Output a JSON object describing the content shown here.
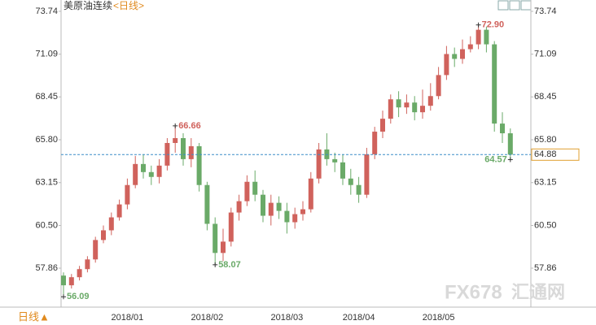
{
  "chart_data": {
    "type": "candlestick",
    "title": "美原油连续",
    "period": "<日线>",
    "period_button": "日线▲",
    "watermark": [
      "FX678",
      "汇通网"
    ],
    "categories": [
      null,
      null,
      null,
      null,
      null,
      null,
      null,
      null,
      "2018/01",
      null,
      null,
      null,
      null,
      null,
      null,
      null,
      null,
      null,
      "2018/02",
      null,
      null,
      null,
      null,
      null,
      null,
      null,
      null,
      null,
      "2018/03",
      null,
      null,
      null,
      null,
      null,
      null,
      null,
      null,
      "2018/04",
      null,
      null,
      null,
      null,
      null,
      null,
      null,
      null,
      null,
      "2018/05",
      null,
      null,
      null,
      null,
      null,
      null,
      null,
      null,
      null
    ],
    "open": [
      57.4,
      56.8,
      57.3,
      57.8,
      58.4,
      59.6,
      60.2,
      61.0,
      61.8,
      63.0,
      64.3,
      63.8,
      63.5,
      64.2,
      65.6,
      65.9,
      64.6,
      65.4,
      63.0,
      60.6,
      58.8,
      59.5,
      61.3,
      62.0,
      63.2,
      62.4,
      61.1,
      61.9,
      61.4,
      60.7,
      61.2,
      61.5,
      63.4,
      65.2,
      64.6,
      64.4,
      63.4,
      63.0,
      62.4,
      64.9,
      66.3,
      67.1,
      68.3,
      67.8,
      68.1,
      67.5,
      67.9,
      68.5,
      69.8,
      71.1,
      70.8,
      71.4,
      71.7,
      72.6,
      71.7,
      66.8,
      66.2
    ],
    "high": [
      57.6,
      57.5,
      58.0,
      58.6,
      59.8,
      60.5,
      61.3,
      62.1,
      63.4,
      64.8,
      64.9,
      64.2,
      64.6,
      65.9,
      66.66,
      66.2,
      65.9,
      65.6,
      63.2,
      61.0,
      60.3,
      61.6,
      62.4,
      63.6,
      63.9,
      62.7,
      62.4,
      62.3,
      61.9,
      61.6,
      62.0,
      63.8,
      65.6,
      66.2,
      65.0,
      64.9,
      64.0,
      63.5,
      65.3,
      66.6,
      67.6,
      68.6,
      68.8,
      68.6,
      68.5,
      68.9,
      69.3,
      70.3,
      71.6,
      71.5,
      72.0,
      72.2,
      72.9,
      72.8,
      71.9,
      67.5,
      66.5
    ],
    "low": [
      56.09,
      56.6,
      57.1,
      57.6,
      58.2,
      59.4,
      59.9,
      60.8,
      61.5,
      62.8,
      63.4,
      63.0,
      63.1,
      63.9,
      65.0,
      64.2,
      64.1,
      62.6,
      60.2,
      58.07,
      58.3,
      59.2,
      60.8,
      61.7,
      62.0,
      60.7,
      60.5,
      60.9,
      60.0,
      60.3,
      60.8,
      61.3,
      63.1,
      64.2,
      63.8,
      63.0,
      62.4,
      61.9,
      62.2,
      64.6,
      65.9,
      66.8,
      67.2,
      67.4,
      67.0,
      67.1,
      67.6,
      68.3,
      69.5,
      70.3,
      70.5,
      71.2,
      71.4,
      71.2,
      66.3,
      65.6,
      64.57
    ],
    "close": [
      56.8,
      57.3,
      57.8,
      58.4,
      59.6,
      60.2,
      61.0,
      61.8,
      63.0,
      64.3,
      63.8,
      63.5,
      64.2,
      65.6,
      65.9,
      64.6,
      65.4,
      63.0,
      60.6,
      58.8,
      59.5,
      61.3,
      62.0,
      63.2,
      62.4,
      61.1,
      61.9,
      61.4,
      60.7,
      61.2,
      61.5,
      63.4,
      65.2,
      64.6,
      64.4,
      63.4,
      63.0,
      62.4,
      64.9,
      66.3,
      67.1,
      68.3,
      67.8,
      68.1,
      67.5,
      67.9,
      68.5,
      69.8,
      71.1,
      70.8,
      71.4,
      71.7,
      72.6,
      71.7,
      66.8,
      66.2,
      64.88
    ],
    "up_color": "#d0625c",
    "down_color": "#6aaa68",
    "annotations": [
      {
        "label": "72.90",
        "value": 72.9
      },
      {
        "label": "66.66",
        "value": 66.66
      },
      {
        "label": "58.07",
        "value": 58.07
      },
      {
        "label": "56.09",
        "value": 56.09
      },
      {
        "label": "64.57",
        "value": 64.57
      }
    ],
    "last_price": 64.88,
    "ylim": [
      55.45,
      74.19
    ],
    "yticks": [
      57.86,
      {
        "value": 60.5,
        "label": "60.50"
      },
      63.15,
      {
        "value": 65.8,
        "label": "65.80"
      },
      68.45,
      71.09,
      73.74
    ]
  }
}
